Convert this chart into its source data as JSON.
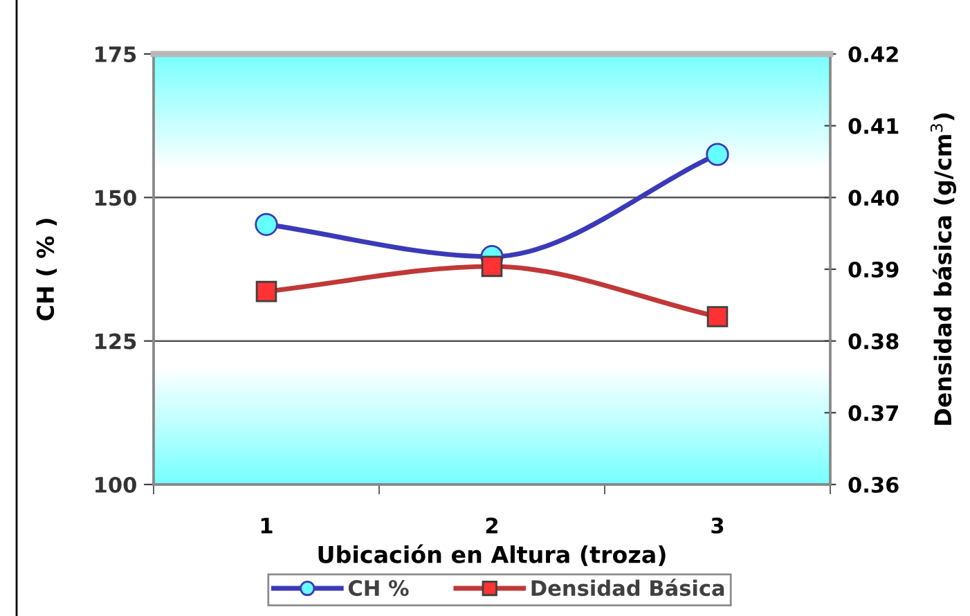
{
  "chart_data": {
    "type": "line",
    "xlabel": "Ubicación en Altura (troza)",
    "ylabel": "CH ( % )",
    "y2label": "Densidad básica (g/cm$^{3}$)",
    "categories": [
      "1",
      "2",
      "3"
    ],
    "series": [
      {
        "name": "CH %",
        "color": "#3a3ab8",
        "values": [
          145.3,
          139.7,
          157.5
        ],
        "marker": "circle"
      },
      {
        "name": "Densidad Básica",
        "color": "#c03838",
        "values": [
          0.3869,
          0.3904,
          0.3834
        ],
        "axis": "y2",
        "marker": "square"
      }
    ],
    "ylim": [
      100,
      175
    ],
    "yticks": [
      100,
      125,
      150,
      175
    ],
    "y2lim": [
      0.36,
      0.42
    ],
    "y2ticks": [
      0.36,
      0.37,
      0.38,
      0.39,
      {
        "value": 0.4,
        "label": "0.40"
      },
      0.41,
      0.42
    ],
    "grid": "y",
    "legend": "bottom",
    "line_style": "solid"
  }
}
